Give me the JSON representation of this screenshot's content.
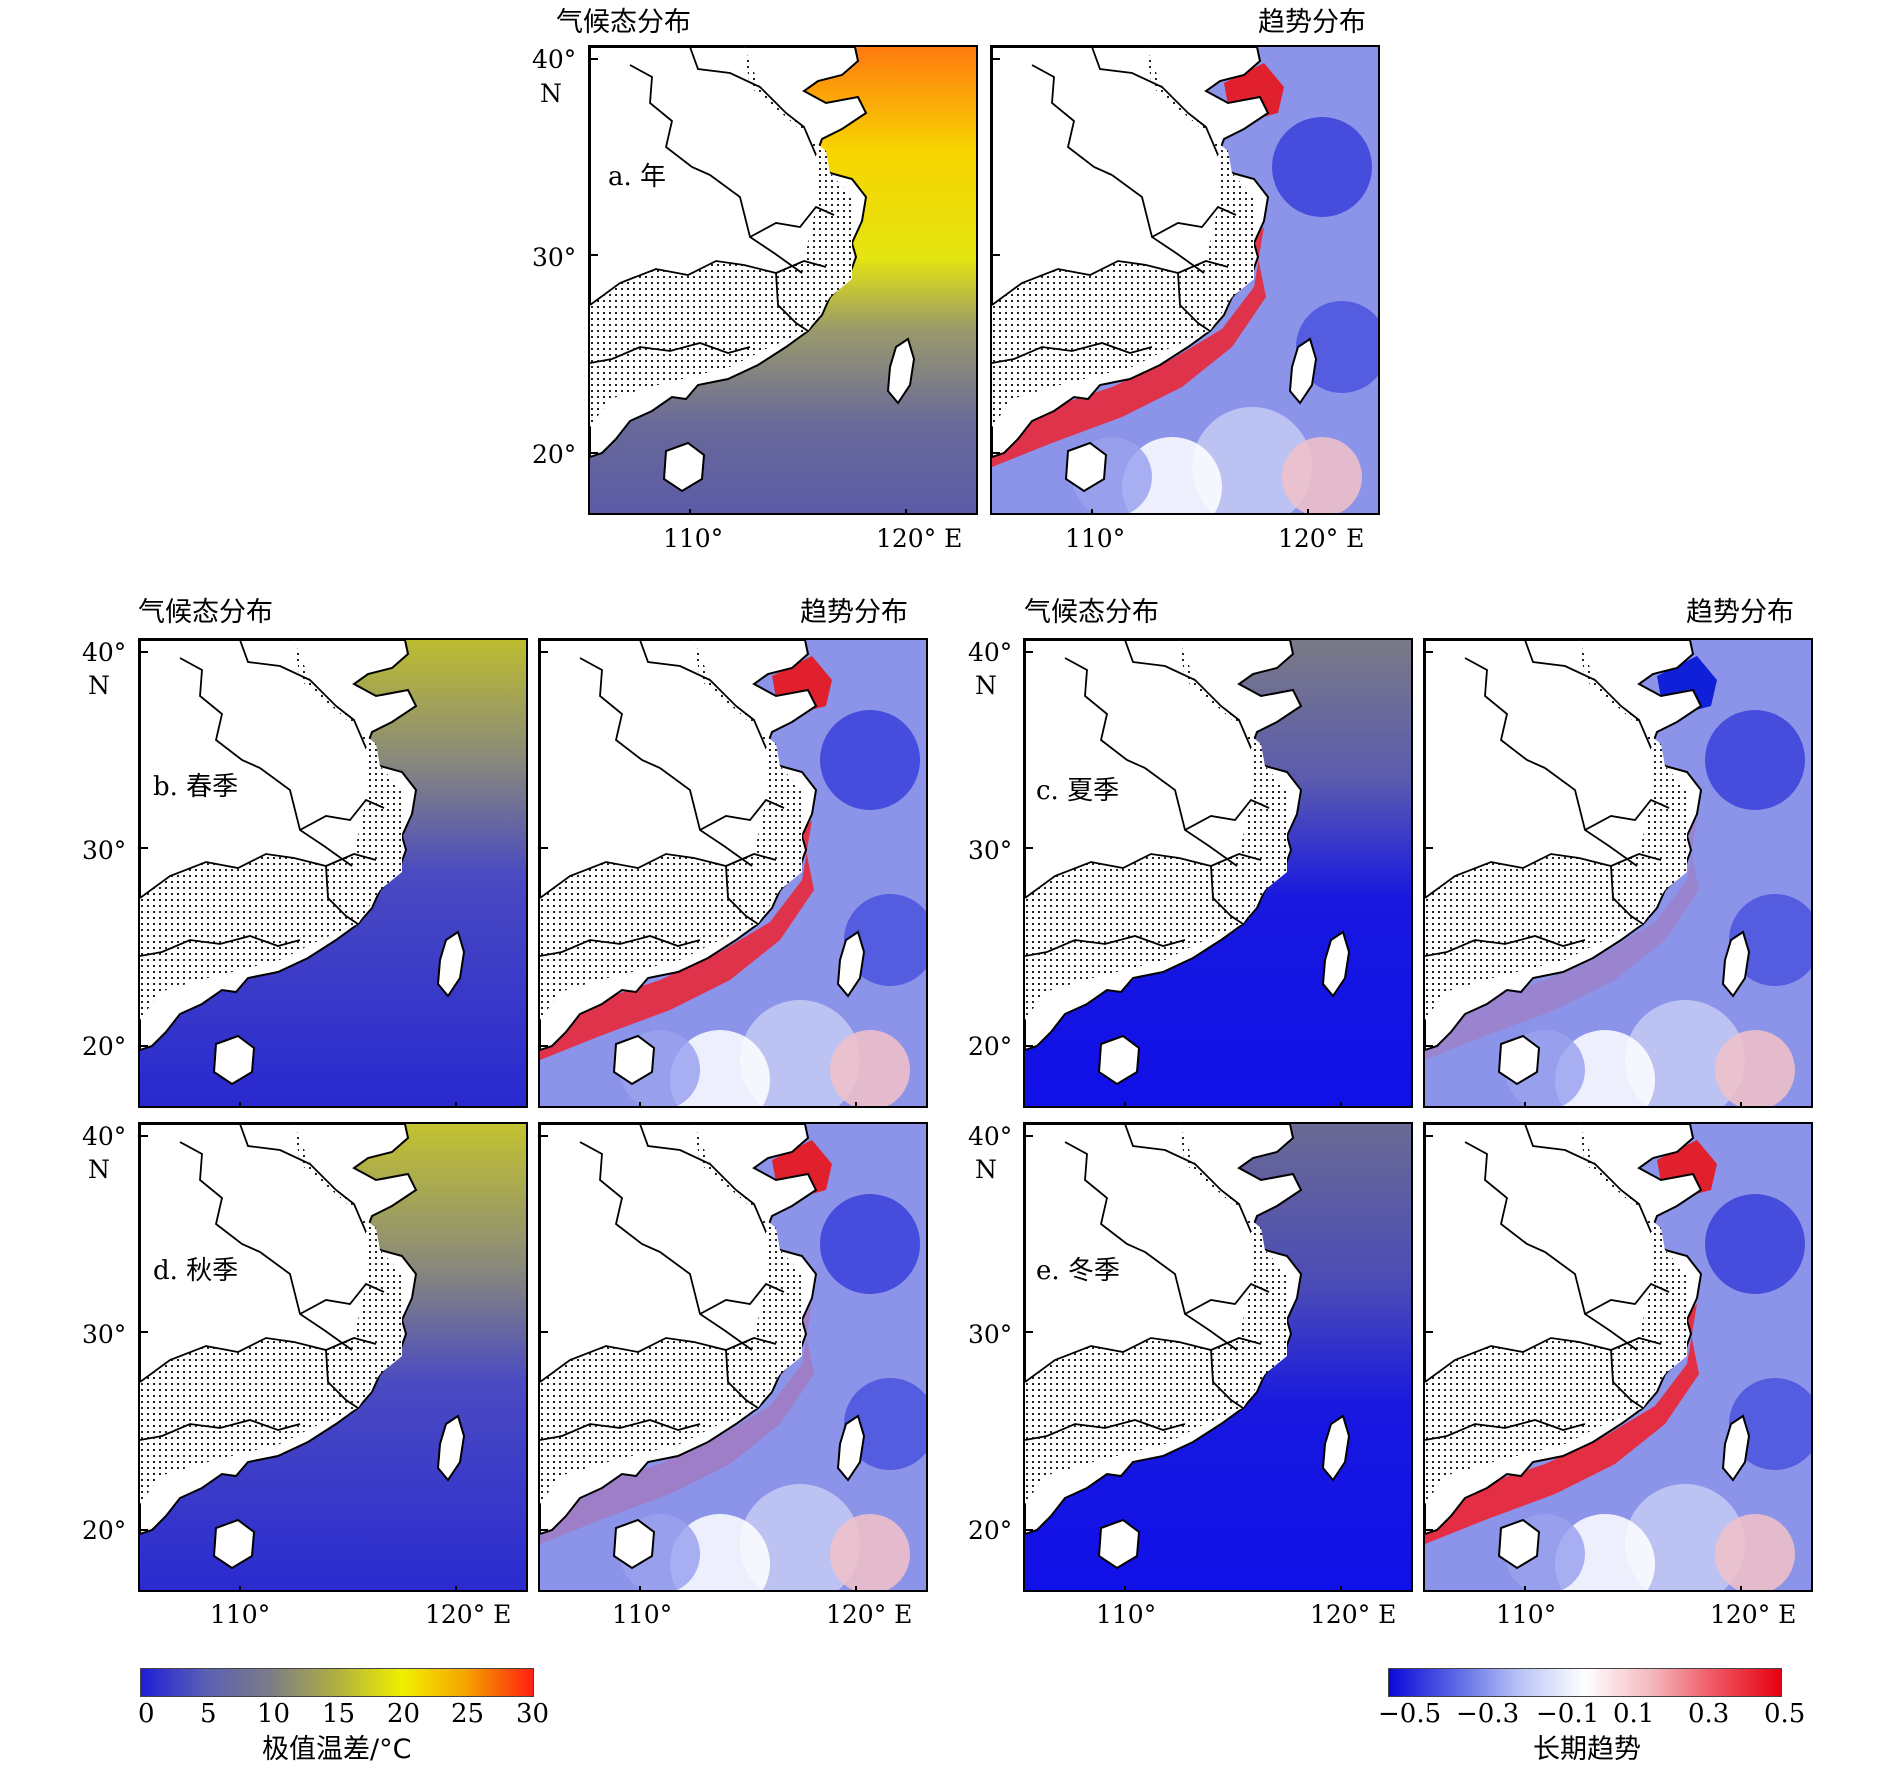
{
  "headers": {
    "climate": "气候态分布",
    "trend": "趋势分布"
  },
  "panels": [
    {
      "id": "a",
      "label": "a. 年"
    },
    {
      "id": "b",
      "label": "b. 春季"
    },
    {
      "id": "c",
      "label": "c. 夏季"
    },
    {
      "id": "d",
      "label": "d. 秋季"
    },
    {
      "id": "e",
      "label": "e. 冬季"
    }
  ],
  "axes": {
    "lat_ticks": [
      "40°",
      "30°",
      "20°"
    ],
    "lat_unit": "N",
    "lon_ticks": [
      "110°",
      "120° E"
    ]
  },
  "colorbars": {
    "climate": {
      "ticks": [
        "0",
        "5",
        "10",
        "15",
        "20",
        "25",
        "30"
      ],
      "title": "极值温差/°C",
      "range": [
        0,
        30
      ],
      "colors": [
        "#1f1fd8",
        "#5b5fb4",
        "#7d7d86",
        "#b0b040",
        "#f0f000",
        "#f5a000",
        "#ff2010"
      ]
    },
    "trend": {
      "ticks": [
        "−0.5",
        "−0.3",
        "−0.1",
        "0.1",
        "0.3",
        "0.5"
      ],
      "title": "长期趋势",
      "range": [
        -0.5,
        0.5
      ],
      "colors": [
        "#0a0ad8",
        "#5a66e6",
        "#b9c3f5",
        "#ffffff",
        "#f5b9c0",
        "#ee5560",
        "#e80010"
      ]
    }
  }
}
